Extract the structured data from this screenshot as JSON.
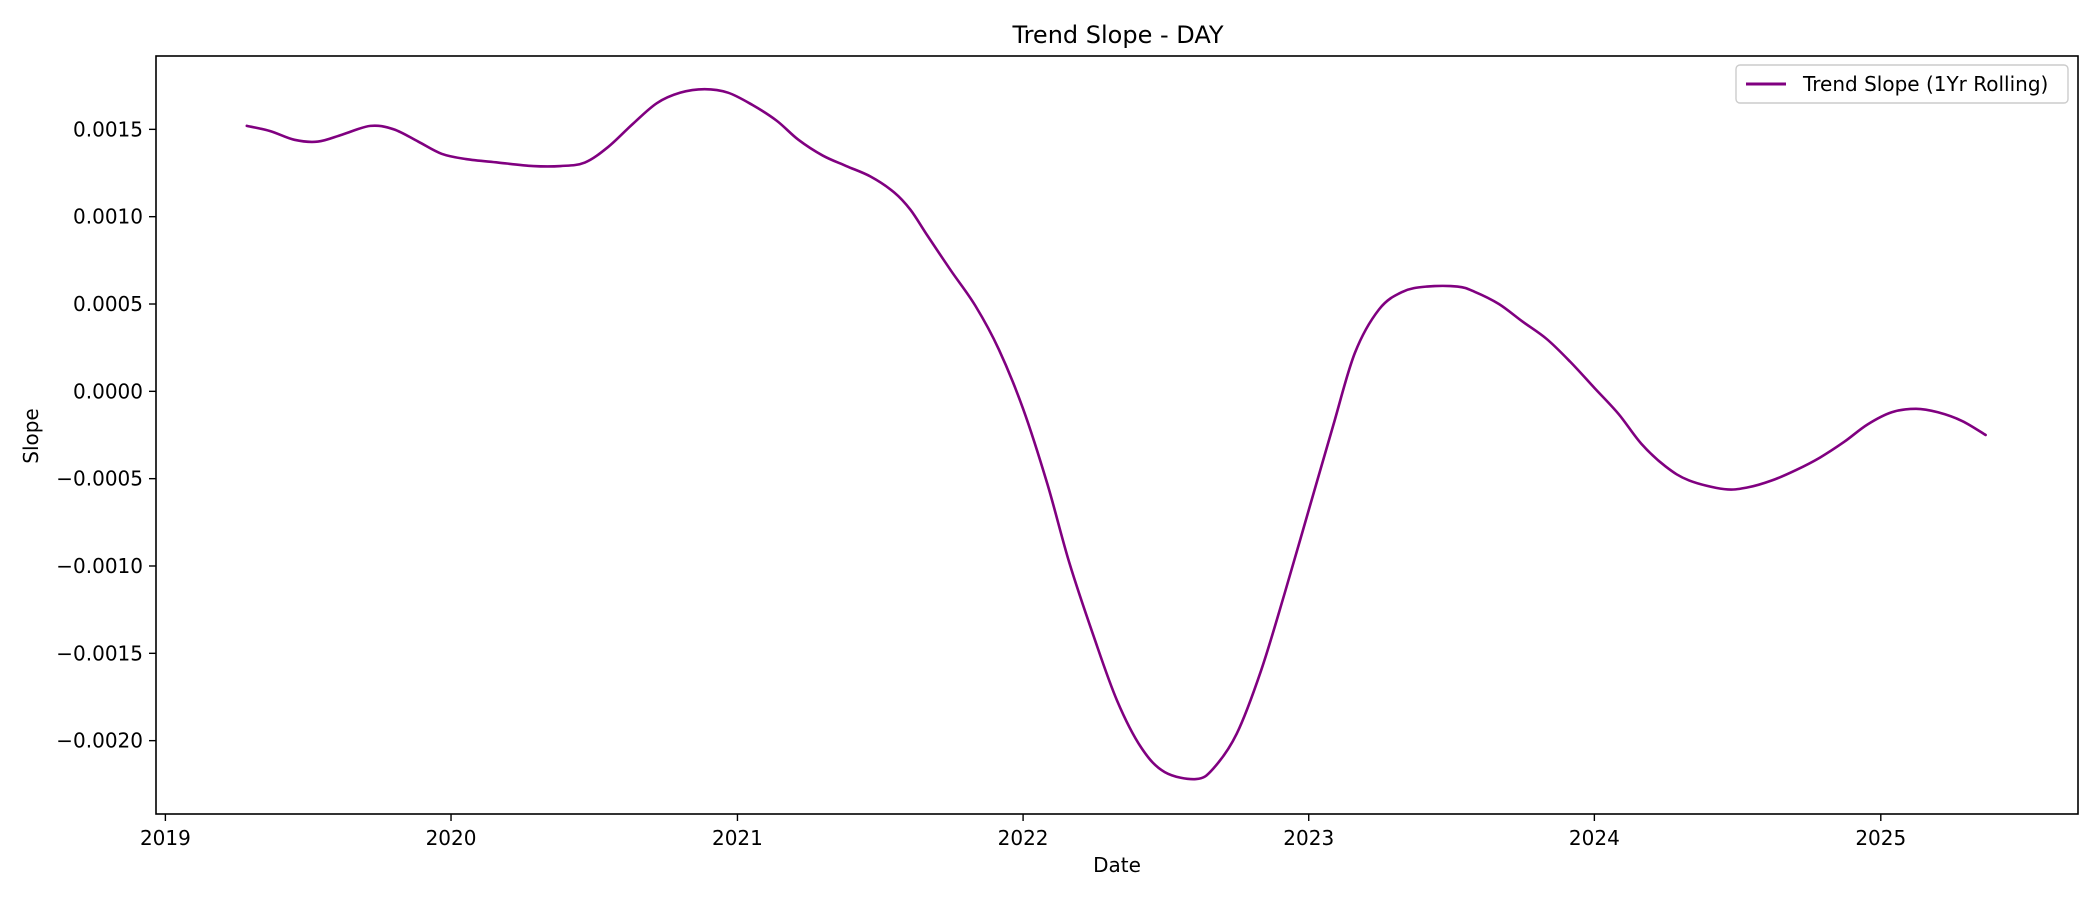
{
  "chart_data": {
    "type": "line",
    "title": "Trend Slope - DAY",
    "xlabel": "Date",
    "ylabel": "Slope",
    "x_axis_type": "date",
    "xlim": [
      "2018-12-20",
      "2025-09-10"
    ],
    "ylim": [
      -0.00242,
      0.00192
    ],
    "x_ticks": [
      {
        "date": "2019-01-01",
        "label": "2019"
      },
      {
        "date": "2020-01-01",
        "label": "2020"
      },
      {
        "date": "2021-01-01",
        "label": "2021"
      },
      {
        "date": "2022-01-01",
        "label": "2022"
      },
      {
        "date": "2023-01-01",
        "label": "2023"
      },
      {
        "date": "2024-01-01",
        "label": "2024"
      },
      {
        "date": "2025-01-01",
        "label": "2025"
      }
    ],
    "y_ticks": [
      {
        "value": 0.0015,
        "label": "0.0015"
      },
      {
        "value": 0.001,
        "label": "0.0010"
      },
      {
        "value": 0.0005,
        "label": "0.0005"
      },
      {
        "value": 0.0,
        "label": "0.0000"
      },
      {
        "value": -0.0005,
        "label": "−0.0005"
      },
      {
        "value": -0.001,
        "label": "−0.0010"
      },
      {
        "value": -0.0015,
        "label": "−0.0015"
      },
      {
        "value": -0.002,
        "label": "−0.0020"
      }
    ],
    "grid": false,
    "legend_position": "top-right",
    "series": [
      {
        "name": "Trend Slope (1Yr Rolling)",
        "color": "#800080",
        "points": [
          {
            "x": "2019-04-15",
            "y": 0.00152
          },
          {
            "x": "2019-05-15",
            "y": 0.00149
          },
          {
            "x": "2019-06-15",
            "y": 0.00144
          },
          {
            "x": "2019-07-15",
            "y": 0.00143
          },
          {
            "x": "2019-08-15",
            "y": 0.00147
          },
          {
            "x": "2019-09-20",
            "y": 0.00152
          },
          {
            "x": "2019-10-20",
            "y": 0.0015
          },
          {
            "x": "2019-11-20",
            "y": 0.00143
          },
          {
            "x": "2019-12-20",
            "y": 0.00136
          },
          {
            "x": "2020-01-20",
            "y": 0.00133
          },
          {
            "x": "2020-03-01",
            "y": 0.00131
          },
          {
            "x": "2020-04-15",
            "y": 0.00129
          },
          {
            "x": "2020-05-20",
            "y": 0.00129
          },
          {
            "x": "2020-06-20",
            "y": 0.00131
          },
          {
            "x": "2020-07-20",
            "y": 0.0014
          },
          {
            "x": "2020-08-20",
            "y": 0.00153
          },
          {
            "x": "2020-09-20",
            "y": 0.00165
          },
          {
            "x": "2020-10-20",
            "y": 0.00171
          },
          {
            "x": "2020-11-20",
            "y": 0.00173
          },
          {
            "x": "2020-12-20",
            "y": 0.00171
          },
          {
            "x": "2021-01-20",
            "y": 0.00164
          },
          {
            "x": "2021-02-20",
            "y": 0.00155
          },
          {
            "x": "2021-03-20",
            "y": 0.00144
          },
          {
            "x": "2021-04-20",
            "y": 0.00135
          },
          {
            "x": "2021-05-20",
            "y": 0.00129
          },
          {
            "x": "2021-06-20",
            "y": 0.00123
          },
          {
            "x": "2021-07-20",
            "y": 0.00114
          },
          {
            "x": "2021-08-10",
            "y": 0.00104
          },
          {
            "x": "2021-09-01",
            "y": 0.00089
          },
          {
            "x": "2021-10-01",
            "y": 0.00069
          },
          {
            "x": "2021-11-01",
            "y": 0.00049
          },
          {
            "x": "2021-12-01",
            "y": 0.00024
          },
          {
            "x": "2022-01-01",
            "y": -0.0001
          },
          {
            "x": "2022-02-01",
            "y": -0.00053
          },
          {
            "x": "2022-03-01",
            "y": -0.00098
          },
          {
            "x": "2022-04-01",
            "y": -0.0014
          },
          {
            "x": "2022-05-01",
            "y": -0.00177
          },
          {
            "x": "2022-06-01",
            "y": -0.00204
          },
          {
            "x": "2022-07-01",
            "y": -0.00218
          },
          {
            "x": "2022-08-10",
            "y": -0.00222
          },
          {
            "x": "2022-09-01",
            "y": -0.00216
          },
          {
            "x": "2022-10-01",
            "y": -0.00196
          },
          {
            "x": "2022-11-01",
            "y": -0.0016
          },
          {
            "x": "2022-12-01",
            "y": -0.00116
          },
          {
            "x": "2023-01-01",
            "y": -0.00068
          },
          {
            "x": "2023-02-01",
            "y": -0.0002
          },
          {
            "x": "2023-03-01",
            "y": 0.00022
          },
          {
            "x": "2023-04-01",
            "y": 0.00047
          },
          {
            "x": "2023-05-01",
            "y": 0.00057
          },
          {
            "x": "2023-06-01",
            "y": 0.0006
          },
          {
            "x": "2023-07-10",
            "y": 0.0006
          },
          {
            "x": "2023-08-01",
            "y": 0.00057
          },
          {
            "x": "2023-09-01",
            "y": 0.0005
          },
          {
            "x": "2023-10-01",
            "y": 0.0004
          },
          {
            "x": "2023-11-01",
            "y": 0.0003
          },
          {
            "x": "2023-12-01",
            "y": 0.00017
          },
          {
            "x": "2024-01-01",
            "y": 2e-05
          },
          {
            "x": "2024-02-01",
            "y": -0.00013
          },
          {
            "x": "2024-03-01",
            "y": -0.0003
          },
          {
            "x": "2024-04-01",
            "y": -0.00043
          },
          {
            "x": "2024-05-01",
            "y": -0.00051
          },
          {
            "x": "2024-06-15",
            "y": -0.00056
          },
          {
            "x": "2024-07-15",
            "y": -0.00055
          },
          {
            "x": "2024-08-15",
            "y": -0.00051
          },
          {
            "x": "2024-09-15",
            "y": -0.00045
          },
          {
            "x": "2024-10-15",
            "y": -0.00038
          },
          {
            "x": "2024-11-15",
            "y": -0.00029
          },
          {
            "x": "2024-12-15",
            "y": -0.00019
          },
          {
            "x": "2025-01-15",
            "y": -0.00012
          },
          {
            "x": "2025-02-15",
            "y": -0.0001
          },
          {
            "x": "2025-03-15",
            "y": -0.00012
          },
          {
            "x": "2025-04-15",
            "y": -0.00017
          },
          {
            "x": "2025-05-15",
            "y": -0.00025
          }
        ]
      }
    ]
  }
}
